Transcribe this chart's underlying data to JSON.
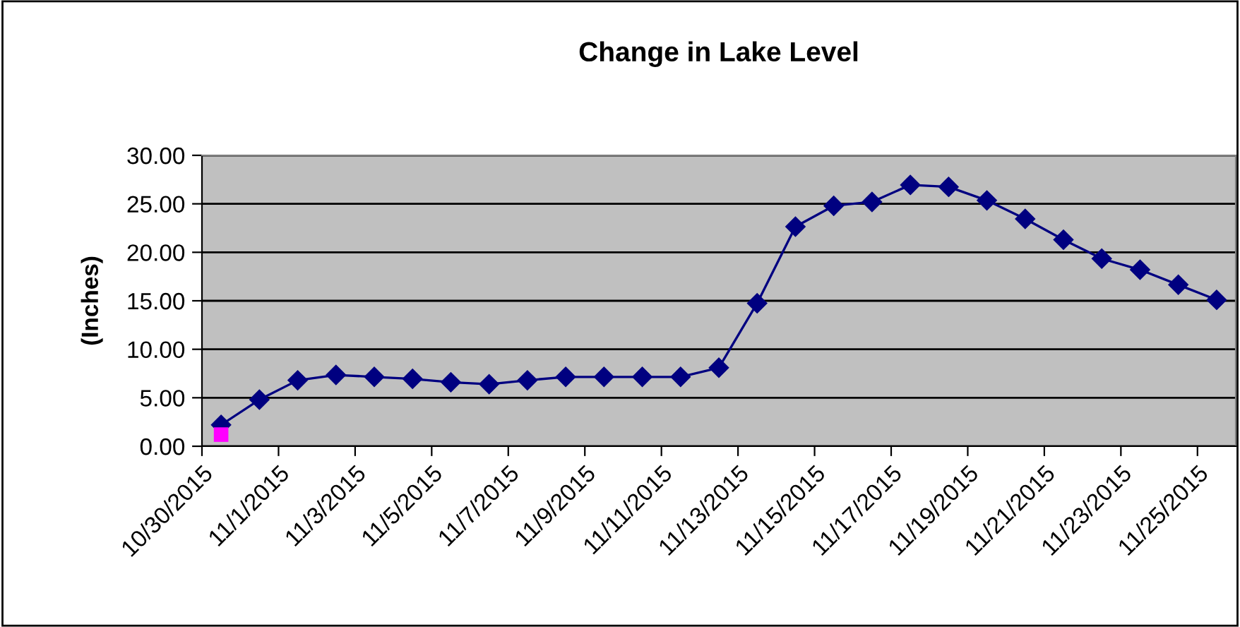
{
  "chart_data": {
    "type": "line",
    "title": "Change in Lake Level",
    "ylabel": "(Inches)",
    "x": [
      "2015-10-30T12:00",
      "2015-10-31T12:00",
      "2015-11-01T12:00",
      "2015-11-02T12:00",
      "2015-11-03T12:00",
      "2015-11-04T12:00",
      "2015-11-05T12:00",
      "2015-11-06T12:00",
      "2015-11-07T12:00",
      "2015-11-08T12:00",
      "2015-11-09T12:00",
      "2015-11-10T12:00",
      "2015-11-11T12:00",
      "2015-11-12T12:00",
      "2015-11-13T12:00",
      "2015-11-14T12:00",
      "2015-11-15T12:00",
      "2015-11-16T12:00",
      "2015-11-17T12:00",
      "2015-11-18T12:00",
      "2015-11-19T12:00",
      "2015-11-20T12:00",
      "2015-11-21T12:00",
      "2015-11-22T12:00",
      "2015-11-23T12:00",
      "2015-11-24T12:00",
      "2015-11-25T12:00"
    ],
    "series": [
      {
        "color": "#000080",
        "marker": "diamond",
        "values": [
          2.2,
          4.8,
          6.8,
          7.35,
          7.15,
          6.95,
          6.6,
          6.4,
          6.8,
          7.15,
          7.15,
          7.15,
          7.15,
          8.1,
          14.75,
          22.65,
          24.8,
          25.2,
          26.95,
          26.75,
          25.35,
          23.45,
          21.3,
          19.35,
          18.2,
          16.65,
          15.1
        ]
      },
      {
        "type": "scatter",
        "color": "#ff00ff",
        "marker": "square",
        "x": [
          "2015-10-30T12:00"
        ],
        "values": [
          1.2
        ]
      }
    ],
    "xlim": [
      "2015-10-30",
      "2015-11-26"
    ],
    "xticks": [
      {
        "value": "2015-10-30",
        "label": "10/30/2015"
      },
      {
        "value": "2015-11-01",
        "label": "11/1/2015"
      },
      {
        "value": "2015-11-03",
        "label": "11/3/2015"
      },
      {
        "value": "2015-11-05",
        "label": "11/5/2015"
      },
      {
        "value": "2015-11-07",
        "label": "11/7/2015"
      },
      {
        "value": "2015-11-09",
        "label": "11/9/2015"
      },
      {
        "value": "2015-11-11",
        "label": "11/11/2015"
      },
      {
        "value": "2015-11-13",
        "label": "11/13/2015"
      },
      {
        "value": "2015-11-15",
        "label": "11/15/2015"
      },
      {
        "value": "2015-11-17",
        "label": "11/17/2015"
      },
      {
        "value": "2015-11-19",
        "label": "11/19/2015"
      },
      {
        "value": "2015-11-21",
        "label": "11/21/2015"
      },
      {
        "value": "2015-11-23",
        "label": "11/23/2015"
      },
      {
        "value": "2015-11-25",
        "label": "11/25/2015"
      }
    ],
    "ylim": [
      0,
      30
    ],
    "yticks": [
      {
        "value": 0,
        "label": "0.00"
      },
      {
        "value": 5,
        "label": "5.00"
      },
      {
        "value": 10,
        "label": "10.00"
      },
      {
        "value": 15,
        "label": "15.00"
      },
      {
        "value": 20,
        "label": "20.00"
      },
      {
        "value": 25,
        "label": "25.00"
      },
      {
        "value": 30,
        "label": "30.00"
      }
    ],
    "grid": "y",
    "line_style": "solid"
  }
}
